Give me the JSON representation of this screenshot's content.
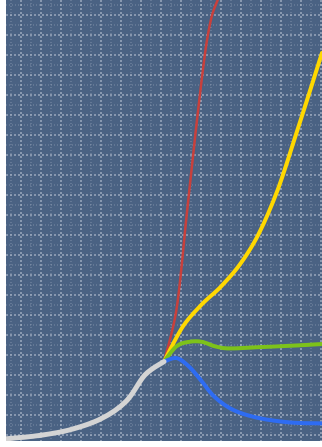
{
  "colors": {
    "plot_bg": "#4a6283",
    "grid": "#c9d3df",
    "frame": "#ffffff",
    "historical": "#d4d4d4",
    "projection_red": "#c8403c",
    "projection_yellow": "#ffd800",
    "projection_green": "#7dc21a",
    "projection_blue": "#2e6cf2"
  },
  "chart_data": {
    "type": "line",
    "title": "",
    "xlabel": "",
    "ylabel": "",
    "grid": true,
    "legend": "none",
    "xlim": [
      0,
      100
    ],
    "ylim": [
      0,
      100
    ],
    "series": [
      {
        "key": "historical",
        "colorKey": "historical",
        "width": 5,
        "x": [
          0,
          10,
          20,
          30,
          38,
          44,
          50
        ],
        "y": [
          0.5,
          1.2,
          2.5,
          5.0,
          9.0,
          15.0,
          18.0
        ]
      },
      {
        "key": "proj-red",
        "colorKey": "projection_red",
        "width": 2.5,
        "x": [
          50,
          54,
          57,
          60,
          63,
          65,
          67
        ],
        "y": [
          18.0,
          30,
          50,
          70,
          88,
          96,
          100
        ]
      },
      {
        "key": "proj-yellow",
        "colorKey": "projection_yellow",
        "width": 4,
        "x": [
          50,
          56,
          62,
          68,
          74,
          80,
          86,
          92,
          100
        ],
        "y": [
          18.0,
          26,
          31,
          35,
          40,
          47,
          57,
          70,
          88
        ]
      },
      {
        "key": "proj-green",
        "colorKey": "projection_green",
        "width": 4,
        "x": [
          50,
          54,
          58,
          62,
          66,
          70,
          78,
          90,
          100
        ],
        "y": [
          18.0,
          21.5,
          22.5,
          22.5,
          21.5,
          21.0,
          21.2,
          21.6,
          22.0
        ]
      },
      {
        "key": "proj-blue",
        "colorKey": "projection_blue",
        "width": 4,
        "x": [
          50,
          54,
          58,
          62,
          66,
          72,
          80,
          90,
          100
        ],
        "y": [
          18.0,
          18.8,
          16.8,
          13.5,
          10.0,
          7.0,
          5.2,
          4.2,
          4.0
        ]
      }
    ]
  }
}
